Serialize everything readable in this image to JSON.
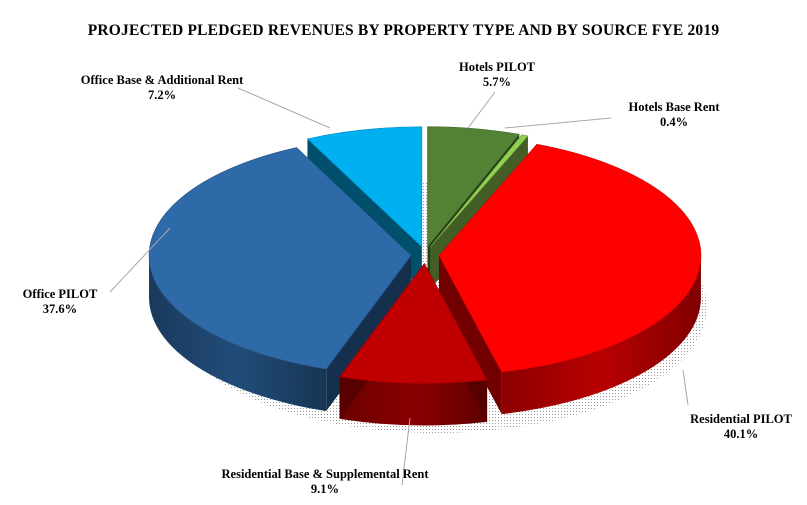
{
  "chart_data": {
    "type": "pie",
    "title": "PROJECTED PLEDGED REVENUES BY PROPERTY TYPE AND BY SOURCE FYE 2019",
    "slices": [
      {
        "label": "Hotels PILOT",
        "value": 5.7,
        "value_label": "5.7%",
        "color": "#548235"
      },
      {
        "label": "Hotels Base Rent",
        "value": 0.4,
        "value_label": "0.4%",
        "color": "#92d050"
      },
      {
        "label": "Residential PILOT",
        "value": 40.1,
        "value_label": "40.1%",
        "color": "#ff0000"
      },
      {
        "label": "Residential Base & Supplemental  Rent",
        "value": 9.1,
        "value_label": "9.1%",
        "color": "#c00000"
      },
      {
        "label": "Office PILOT",
        "value": 37.6,
        "value_label": "37.6%",
        "color": "#2e6aa8"
      },
      {
        "label": "Office Base & Additional  Rent",
        "value": 7.2,
        "value_label": "7.2%",
        "color": "#00b0f0"
      }
    ],
    "style": "3d-exploded",
    "legend": "none"
  }
}
